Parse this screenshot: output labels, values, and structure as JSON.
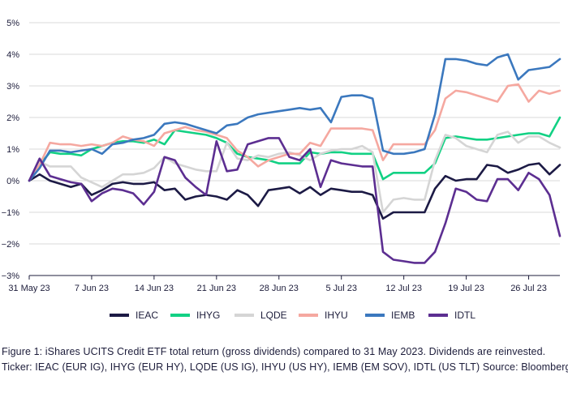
{
  "chart_data": {
    "type": "line",
    "title": "",
    "xlabel": "",
    "ylabel": "",
    "ylim": [
      -3,
      5
    ],
    "yticks": [
      -3,
      -2,
      -1,
      0,
      1,
      2,
      3,
      4,
      5
    ],
    "ytick_labels": [
      "−3%",
      "−2%",
      "−1%",
      "0%",
      "1%",
      "2%",
      "3%",
      "4%",
      "5%"
    ],
    "xlim": [
      0,
      42.5
    ],
    "xticks": [
      0,
      5,
      10,
      15,
      20,
      25,
      30,
      35,
      40
    ],
    "xtick_labels": [
      "31 May 23",
      "7 Jun 23",
      "14 Jun 23",
      "21 Jun 23",
      "28 Jun 23",
      "5 Jul 23",
      "12 Jul 23",
      "19 Jul 23",
      "26 Jul 23"
    ],
    "grid": "horizontal",
    "legend_position": "bottom",
    "series": [
      {
        "name": "IEAC",
        "color": "#1c1a45",
        "values": [
          0,
          0.2,
          0,
          -0.1,
          -0.2,
          -0.1,
          -0.45,
          -0.3,
          -0.1,
          -0.05,
          -0.1,
          -0.1,
          -0.05,
          -0.3,
          -0.25,
          -0.6,
          -0.5,
          -0.45,
          -0.5,
          -0.6,
          -0.3,
          -0.45,
          -0.8,
          -0.3,
          -0.25,
          -0.2,
          -0.4,
          -0.2,
          -0.45,
          -0.25,
          -0.3,
          -0.35,
          -0.35,
          -0.45,
          -1.2,
          -1.0,
          -1.0,
          -1.0,
          -1.0,
          -0.25,
          0.15,
          0.0,
          0.05,
          0.05,
          0.5,
          0.45,
          0.25,
          0.35,
          0.5,
          0.55,
          0.2,
          0.5
        ]
      },
      {
        "name": "IHYG",
        "color": "#12d184",
        "values": [
          0,
          0.5,
          0.9,
          0.85,
          0.85,
          0.8,
          1.0,
          1.1,
          1.2,
          1.25,
          1.25,
          1.2,
          1.3,
          1.15,
          1.6,
          1.55,
          1.5,
          1.45,
          1.35,
          1.2,
          0.85,
          0.75,
          0.7,
          0.65,
          0.55,
          0.55,
          0.55,
          0.9,
          0.85,
          0.9,
          0.9,
          0.85,
          0.85,
          0.85,
          0.05,
          0.25,
          0.25,
          0.25,
          0.25,
          0.55,
          1.35,
          1.4,
          1.35,
          1.3,
          1.3,
          1.35,
          1.4,
          1.45,
          1.5,
          1.5,
          1.4,
          2.0
        ]
      },
      {
        "name": "LQDE",
        "color": "#d5d5d5",
        "values": [
          0,
          0.6,
          0.45,
          0.45,
          0.45,
          0.1,
          -0.05,
          -0.2,
          0.0,
          0.2,
          0.2,
          0.25,
          0.4,
          0.75,
          0.55,
          0.45,
          0.35,
          0.3,
          0.3,
          1.2,
          0.7,
          0.65,
          0.8,
          0.75,
          0.85,
          0.9,
          0.8,
          0.65,
          0.85,
          0.95,
          1.0,
          1.0,
          1.1,
          0.9,
          -1.0,
          -0.6,
          -0.55,
          -0.6,
          -0.6,
          0.65,
          1.45,
          1.35,
          1.1,
          1.0,
          0.9,
          1.45,
          1.55,
          1.2,
          1.4,
          1.4,
          1.2,
          1.05
        ]
      },
      {
        "name": "IHYU",
        "color": "#f5a8a0",
        "values": [
          0,
          0.5,
          1.2,
          1.15,
          1.15,
          1.1,
          1.15,
          1.1,
          1.2,
          1.4,
          1.3,
          1.25,
          1.1,
          1.5,
          1.6,
          1.7,
          1.6,
          1.55,
          1.45,
          1.35,
          0.95,
          0.75,
          0.45,
          0.65,
          0.75,
          0.85,
          0.85,
          1.2,
          1.1,
          1.65,
          1.65,
          1.65,
          1.65,
          1.6,
          0.65,
          1.15,
          1.15,
          1.15,
          1.15,
          1.6,
          2.6,
          2.85,
          2.8,
          2.7,
          2.6,
          2.5,
          3.0,
          3.05,
          2.5,
          2.85,
          2.75,
          2.85
        ]
      },
      {
        "name": "IEMB",
        "color": "#3b78be",
        "values": [
          0,
          0.4,
          0.95,
          0.95,
          0.9,
          0.95,
          1.0,
          0.85,
          1.15,
          1.2,
          1.3,
          1.35,
          1.45,
          1.8,
          1.85,
          1.8,
          1.7,
          1.6,
          1.5,
          1.75,
          1.8,
          2.0,
          2.1,
          2.15,
          2.2,
          2.25,
          2.3,
          2.25,
          2.3,
          1.85,
          2.65,
          2.7,
          2.7,
          2.6,
          0.95,
          0.85,
          0.85,
          0.9,
          1.0,
          2.1,
          3.85,
          3.85,
          3.8,
          3.7,
          3.65,
          3.9,
          4.0,
          3.2,
          3.5,
          3.55,
          3.6,
          3.85
        ]
      },
      {
        "name": "IDTL",
        "color": "#5c2e91",
        "values": [
          0,
          0.7,
          0.15,
          0.05,
          -0.05,
          -0.1,
          -0.65,
          -0.4,
          -0.25,
          -0.3,
          -0.4,
          -0.75,
          -0.35,
          0.75,
          0.65,
          0.1,
          -0.2,
          -0.45,
          1.25,
          0.3,
          0.35,
          1.15,
          1.25,
          1.35,
          1.35,
          0.75,
          0.65,
          1.0,
          -0.2,
          0.65,
          0.55,
          0.5,
          0.45,
          0.45,
          -2.25,
          -2.5,
          -2.55,
          -2.6,
          -2.6,
          -2.25,
          -1.35,
          -0.25,
          -0.35,
          -0.6,
          -0.65,
          0.05,
          0.05,
          -0.3,
          0.25,
          0.05,
          -0.45,
          -1.75
        ]
      }
    ]
  },
  "caption": {
    "line1": "Figure 1: iShares UCITS Credit ETF total return (gross dividends) compared to 31 May 2023. Dividends are reinvested.",
    "line2": "Ticker: IEAC (EUR IG), IHYG (EUR HY), LQDE (US IG), IHYU (US HY), IEMB (EM SOV), IDTL (US TLT) Source: Bloomberg LP"
  }
}
